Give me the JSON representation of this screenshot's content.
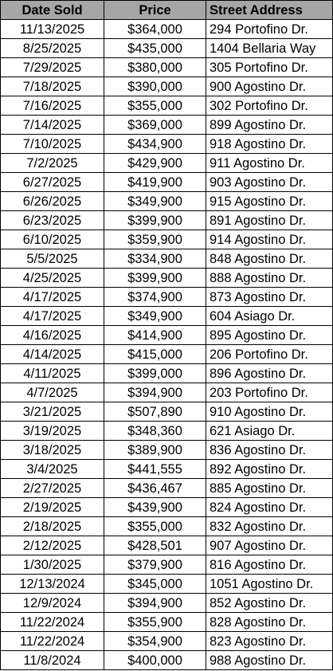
{
  "table": {
    "headers": [
      "Date Sold",
      "Price",
      "Street Address"
    ],
    "rows": [
      [
        "11/13/2025",
        "$364,000",
        "294 Portofino Dr."
      ],
      [
        "8/25/2025",
        "$435,000",
        "1404 Bellaria Way"
      ],
      [
        "7/29/2025",
        "$380,000",
        "305 Portofino Dr."
      ],
      [
        "7/18/2025",
        "$390,000",
        "900 Agostino Dr."
      ],
      [
        "7/16/2025",
        "$355,000",
        "302 Portofino Dr."
      ],
      [
        "7/14/2025",
        "$369,000",
        "899 Agostino Dr."
      ],
      [
        "7/10/2025",
        "$434,900",
        "918 Agostino Dr."
      ],
      [
        "7/2/2025",
        "$429,900",
        "911 Agostino Dr."
      ],
      [
        "6/27/2025",
        "$419,900",
        "903 Agostino Dr."
      ],
      [
        "6/26/2025",
        "$349,900",
        "915 Agostino Dr."
      ],
      [
        "6/23/2025",
        "$399,900",
        "891 Agostino Dr."
      ],
      [
        "6/10/2025",
        "$359,900",
        "914 Agostino Dr."
      ],
      [
        "5/5/2025",
        "$334,900",
        "848 Agostino Dr."
      ],
      [
        "4/25/2025",
        "$399,900",
        "888 Agostino Dr."
      ],
      [
        "4/17/2025",
        "$374,900",
        "873 Agostino Dr."
      ],
      [
        "4/17/2025",
        "$349,900",
        "604 Asiago Dr."
      ],
      [
        "4/16/2025",
        "$414,900",
        "895 Agostino Dr."
      ],
      [
        "4/14/2025",
        "$415,000",
        "206 Portofino Dr."
      ],
      [
        "4/11/2025",
        "$399,000",
        "896 Agostino Dr."
      ],
      [
        "4/7/2025",
        "$394,900",
        "203 Portofino Dr."
      ],
      [
        "3/21/2025",
        "$507,890",
        "910 Agostino Dr."
      ],
      [
        "3/19/2025",
        "$348,360",
        "621 Asiago Dr."
      ],
      [
        "3/18/2025",
        "$389,900",
        "836 Agostino Dr."
      ],
      [
        "3/4/2025",
        "$441,555",
        "892 Agostino Dr."
      ],
      [
        "2/27/2025",
        "$436,467",
        "885 Agostino Dr."
      ],
      [
        "2/19/2025",
        "$439,900",
        "824 Agostino Dr."
      ],
      [
        "2/18/2025",
        "$355,000",
        "832 Agostino Dr."
      ],
      [
        "2/12/2025",
        "$428,501",
        "907 Agostino Dr."
      ],
      [
        "1/30/2025",
        "$379,900",
        "816 Agostino Dr."
      ],
      [
        "12/13/2024",
        "$345,000",
        "1051 Agostino Dr."
      ],
      [
        "12/9/2024",
        "$394,900",
        "852 Agostino Dr."
      ],
      [
        "11/22/2024",
        "$355,900",
        "828 Agostino Dr."
      ],
      [
        "11/22/2024",
        "$354,900",
        "823 Agostino Dr."
      ],
      [
        "11/8/2024",
        "$400,000",
        "988 Agostino Dr."
      ]
    ]
  },
  "colors": {
    "header_background": "#a6a6a6",
    "grid_lines": "#000000",
    "text": "#000000"
  }
}
